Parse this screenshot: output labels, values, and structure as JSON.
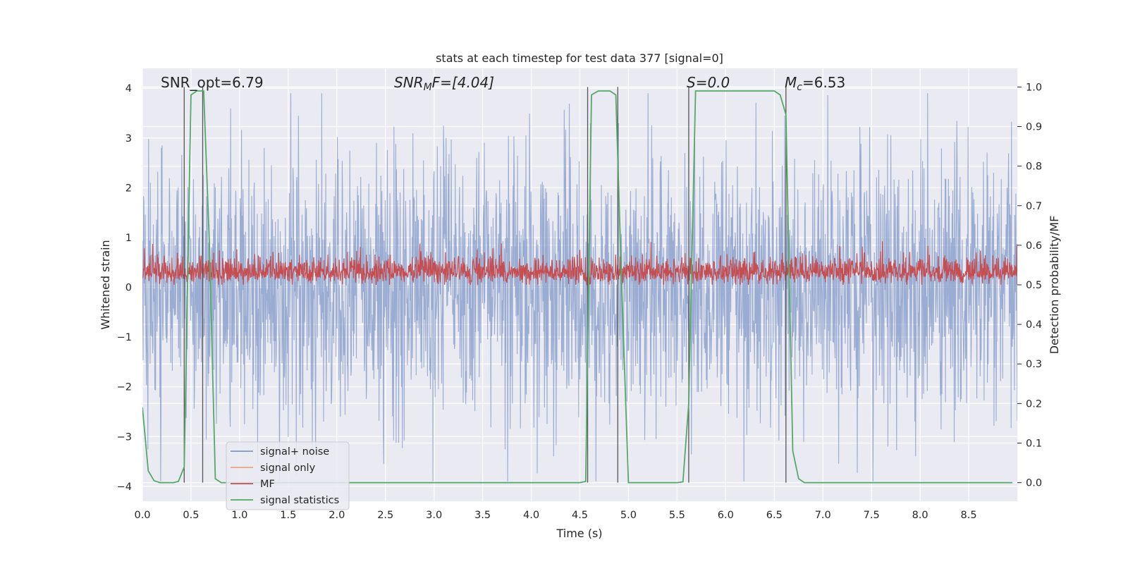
{
  "chart_data": {
    "type": "line",
    "title": "stats at each timestep for test data 377 [signal=0]",
    "xlabel": "Time (s)",
    "ylabel": "Whitened strain",
    "y2label": "Detection probability/MF",
    "xlim": [
      0.0,
      9.0
    ],
    "ylim": [
      -4.3,
      4.4
    ],
    "y2lim": [
      -0.047,
      1.047
    ],
    "xticks": [
      "0.0",
      "0.5",
      "1.0",
      "1.5",
      "2.0",
      "2.5",
      "3.0",
      "3.5",
      "4.0",
      "4.5",
      "5.0",
      "5.5",
      "6.0",
      "6.5",
      "7.0",
      "7.5",
      "8.0",
      "8.5"
    ],
    "yticks": [
      "4",
      "3",
      "2",
      "1",
      "0",
      "−1",
      "−2",
      "−3",
      "−4"
    ],
    "y2ticks": [
      "1.0",
      "0.9",
      "0.8",
      "0.7",
      "0.6",
      "0.5",
      "0.4",
      "0.3",
      "0.2",
      "0.1",
      "0.0"
    ],
    "grid": true,
    "legend_position": "lower-left",
    "annotations": {
      "snr_opt": "SNR_opt=6.79",
      "snr_mf_name": "SNR",
      "snr_mf_sub": "M",
      "snr_mf_rest": "F=[4.04]",
      "s": "S=0.0",
      "mc_name": "M",
      "mc_sub": "c",
      "mc_rest": "=6.53"
    },
    "series": [
      {
        "name": "signal+ noise",
        "color": "#7f97c7",
        "note_style": "noisy, amplitude ~1.5 std, peaks to about ±3.8"
      },
      {
        "name": "signal only",
        "color": "#e8a582",
        "values": []
      },
      {
        "name": "MF",
        "color": "#c44e52",
        "note_style": "noisy trace between about 0.5 and 0.6 on right axis"
      },
      {
        "name": "signal statistics",
        "color": "#55a868",
        "axis": "right",
        "x": [
          0.0,
          0.06,
          0.12,
          0.18,
          0.25,
          0.32,
          0.37,
          0.43,
          0.5,
          0.56,
          0.63,
          0.69,
          0.75,
          0.81,
          0.87,
          4.5,
          4.56,
          4.62,
          4.69,
          4.75,
          4.81,
          4.87,
          4.93,
          5.0,
          5.06,
          5.5,
          5.56,
          5.62,
          5.69,
          5.75,
          6.5,
          6.56,
          6.62,
          6.69,
          6.75,
          6.81,
          8.95
        ],
        "y": [
          0.19,
          0.03,
          0.005,
          0.0,
          0.0,
          0.0,
          0.003,
          0.04,
          0.98,
          0.99,
          0.99,
          0.6,
          0.01,
          0.0,
          0.0,
          0.0,
          0.003,
          0.98,
          0.99,
          0.99,
          0.99,
          0.98,
          0.5,
          0.0,
          0.0,
          0.0,
          0.002,
          0.2,
          0.99,
          0.99,
          0.99,
          0.98,
          0.93,
          0.08,
          0.01,
          0.0,
          0.0
        ]
      }
    ],
    "vlines": [
      0.43,
      0.62,
      4.58,
      4.89,
      5.62,
      6.62
    ]
  }
}
